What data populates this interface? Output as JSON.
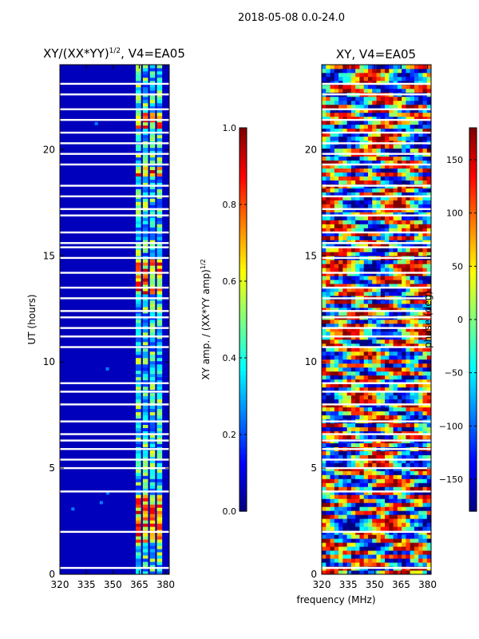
{
  "suptitle": "2018-05-08 0.0-24.0",
  "xlabel_shared": "frequency (MHz)",
  "colors": {
    "jet_stops": [
      "#00007f",
      "#0000ff",
      "#007fff",
      "#00ffff",
      "#7fff7f",
      "#ffff00",
      "#ff7f00",
      "#ff0000",
      "#7f0000"
    ]
  },
  "chart_data": [
    {
      "type": "heatmap",
      "title_base": "XY/(XX*YY)",
      "title_sup": "1/2",
      "title_suffix": ", V4=EA05",
      "xlabel": "",
      "ylabel": "UT (hours)",
      "xlim": [
        320,
        382
      ],
      "ylim": [
        0,
        24
      ],
      "xticks": [
        320,
        335,
        350,
        365,
        380
      ],
      "yticks": [
        0,
        5,
        10,
        15,
        20
      ],
      "colorbar": {
        "label_base": "XY amp. / (XX*YY amp)",
        "label_sup": "1/2",
        "range": [
          0.0,
          1.0
        ],
        "ticks": [
          "0.0",
          "0.2",
          "0.4",
          "0.6",
          "0.8",
          "1.0"
        ],
        "tick_values": [
          0.0,
          0.2,
          0.4,
          0.6,
          0.8,
          1.0
        ]
      },
      "bands_mhz": [
        [
          363,
          366
        ],
        [
          367,
          370
        ],
        [
          371,
          374
        ],
        [
          375,
          378
        ]
      ],
      "high_amp_hours": [
        [
          1.5,
          3.8
        ],
        [
          13.2,
          14.8
        ],
        [
          18.8,
          19.2
        ],
        [
          21.0,
          21.8
        ]
      ],
      "flagged_hours": [
        0.3,
        2.0,
        3.9,
        5.0,
        5.4,
        5.9,
        6.3,
        6.6,
        7.2,
        8.0,
        8.6,
        9.0,
        10.7,
        11.2,
        11.6,
        12.1,
        12.4,
        13.0,
        13.5,
        14.2,
        14.9,
        15.4,
        15.6,
        16.1,
        16.9,
        17.2,
        17.8,
        18.3,
        19.3,
        19.8,
        20.3,
        20.8,
        21.4,
        21.9,
        22.6,
        23.1
      ]
    },
    {
      "type": "heatmap",
      "title": "XY, V4=EA05",
      "xlabel": "frequency (MHz)",
      "ylabel": "",
      "xlim": [
        320,
        382
      ],
      "ylim": [
        0,
        24
      ],
      "xticks": [
        320,
        335,
        350,
        365,
        380
      ],
      "yticks": [
        0,
        5,
        10,
        15,
        20
      ],
      "colorbar": {
        "label": "phase (deg)",
        "range": [
          -180,
          180
        ],
        "ticks": [
          "−150",
          "−100",
          "−50",
          "0",
          "50",
          "100",
          "150"
        ],
        "tick_values": [
          -150,
          -100,
          -50,
          0,
          50,
          100,
          150
        ]
      },
      "flagged_hours": [
        0.3,
        2.0,
        3.9,
        5.0,
        5.4,
        5.9,
        6.3,
        6.6,
        7.2,
        8.0,
        8.6,
        9.0,
        10.7,
        11.2,
        11.6,
        12.1,
        12.4,
        13.0,
        13.5,
        14.2,
        14.9,
        15.4,
        15.6,
        16.1,
        16.9,
        17.2,
        17.8,
        18.3,
        19.3,
        19.8,
        20.3,
        20.8,
        21.4,
        21.9,
        22.6,
        23.1
      ]
    }
  ]
}
